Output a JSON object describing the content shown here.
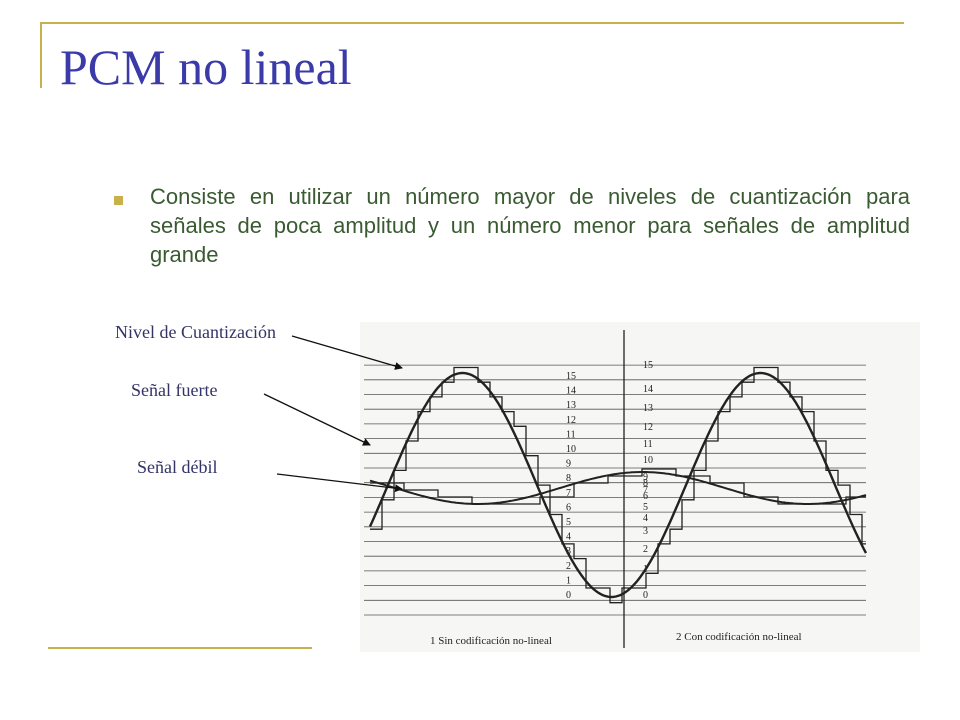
{
  "slide": {
    "title": "PCM no lineal",
    "bullet": "Consiste en utilizar un número mayor de niveles de cuantización para señales de poca amplitud y un número menor para señales de amplitud grande"
  },
  "labels": {
    "quant_level": "Nivel de Cuantización",
    "strong": "Señal fuerte",
    "weak": "Señal débil"
  },
  "diagram": {
    "left_levels": [
      "0",
      "1",
      "2",
      "3",
      "4",
      "5",
      "6",
      "7",
      "8",
      "9",
      "10",
      "11",
      "12",
      "13",
      "14",
      "15"
    ],
    "right_levels": [
      "0",
      "1",
      "2",
      "3",
      "4",
      "5",
      "6",
      "7",
      "8",
      "9",
      "10",
      "11",
      "12",
      "13",
      "14",
      "15"
    ],
    "caption_left": "1 Sin codificación no-lineal",
    "caption_right": "2 Con codificación no-lineal"
  },
  "colors": {
    "title": "#3a3aa8",
    "accent": "#c8b04a",
    "bullet_text": "#3a5a32",
    "label": "#333366"
  }
}
